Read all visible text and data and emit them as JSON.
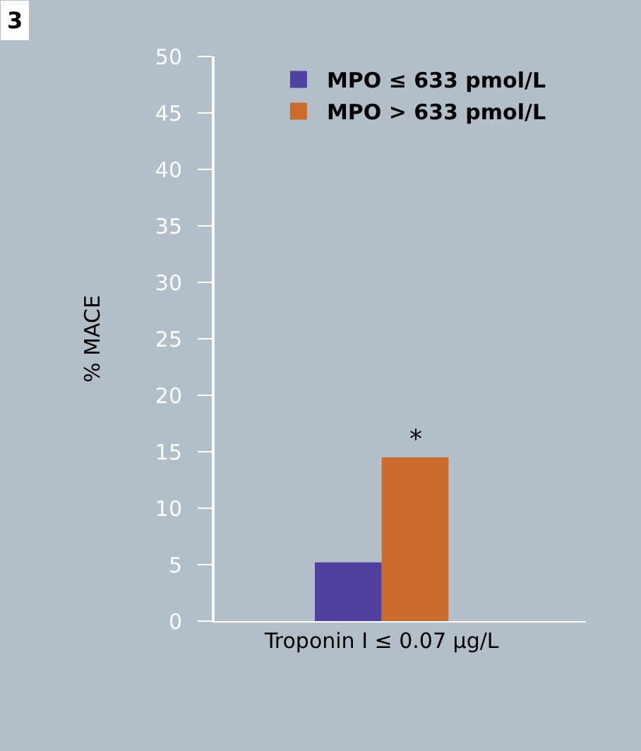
{
  "chart_data": {
    "type": "bar",
    "ylabel": "% MACE",
    "categories": [
      "Troponin I ≤ 0.07 μg/L"
    ],
    "series": [
      {
        "name": "MPO ≤ 633 pmol/L",
        "color": "#5040a0",
        "values": [
          5.2
        ]
      },
      {
        "name": "MPO > 633 pmol/L",
        "color": "#cc6c2c",
        "values": [
          14.5
        ]
      }
    ],
    "ylim": [
      0,
      50
    ],
    "yticks": [
      0,
      5,
      10,
      15,
      20,
      25,
      30,
      35,
      40,
      45,
      50
    ],
    "annotations": [
      "3",
      {
        "text": "*",
        "x": "Troponin I ≤ 0.07 μg/L",
        "y": 14.5
      }
    ],
    "grid": false,
    "legend": "top right"
  }
}
